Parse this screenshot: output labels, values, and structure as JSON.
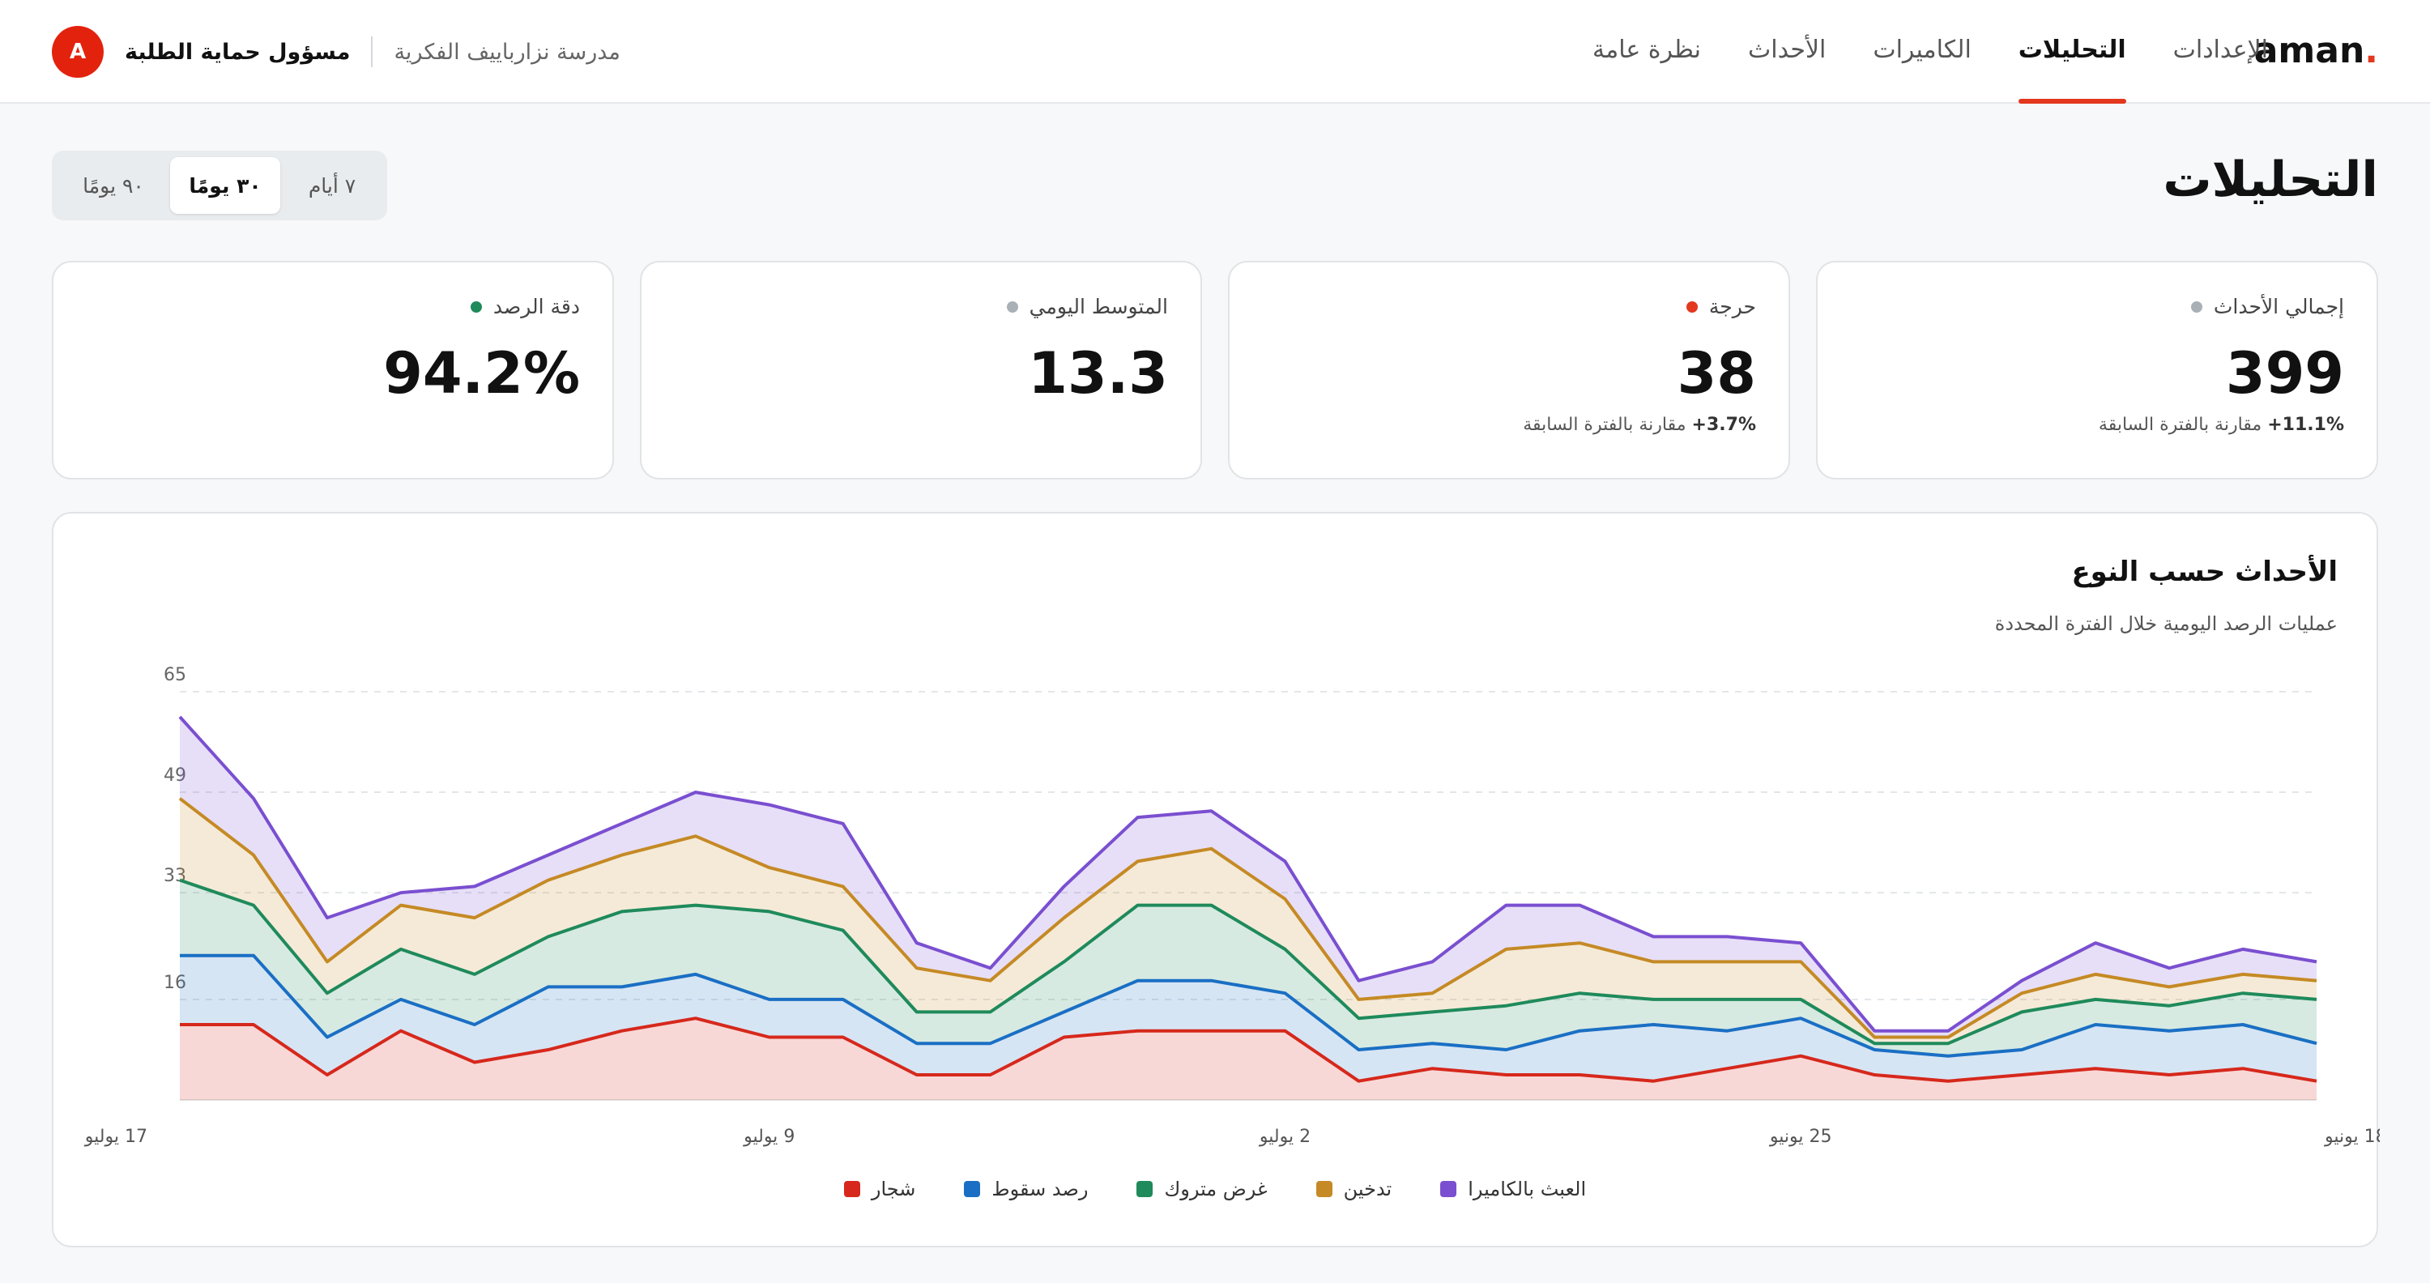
{
  "brand": {
    "logo_text": "aman",
    "logo_dot": "."
  },
  "nav": {
    "items": [
      {
        "label": "نظرة عامة",
        "active": false
      },
      {
        "label": "الأحداث",
        "active": false
      },
      {
        "label": "الكاميرات",
        "active": false
      },
      {
        "label": "التحليلات",
        "active": true
      },
      {
        "label": "الإعدادات",
        "active": false
      }
    ]
  },
  "user": {
    "avatar_initial": "A",
    "role": "مسؤول حماية الطلبة",
    "school": "مدرسة نزارباييف الفكرية"
  },
  "page": {
    "title": "التحليلات"
  },
  "range": {
    "options": [
      "٧ أيام",
      "٣٠ يومًا",
      "٩٠ يومًا"
    ],
    "selected": "٣٠ يومًا"
  },
  "kpis": [
    {
      "label": "إجمالي الأحداث",
      "value": "399",
      "delta": "+11.1%",
      "delta_text": "مقارنة بالفترة السابقة",
      "dot_color": "#a9b0b6"
    },
    {
      "label": "حرجة",
      "value": "38",
      "delta": "+3.7%",
      "delta_text": "مقارنة بالفترة السابقة",
      "dot_color": "#e3371e"
    },
    {
      "label": "المتوسط اليومي",
      "value": "13.3",
      "delta": "",
      "delta_text": "",
      "dot_color": "#a9b0b6"
    },
    {
      "label": "دقة الرصد",
      "value": "94.2%",
      "delta": "",
      "delta_text": "",
      "dot_color": "#1f8a5b"
    }
  ],
  "chart_card": {
    "title": "الأحداث حسب النوع",
    "subtitle": "عمليات الرصد اليومية خلال الفترة المحددة"
  },
  "chart_data": {
    "type": "area",
    "stacked": true,
    "x_direction": "rtl",
    "x_tick_labels": [
      "18 يونيو",
      "25 يونيو",
      "2 يوليو",
      "9 يوليو",
      "17 يوليو"
    ],
    "x_tick_index": [
      0,
      7,
      14,
      21,
      29
    ],
    "ylim": [
      0,
      65
    ],
    "y_ticks": [
      16,
      33,
      49,
      65
    ],
    "grid": true,
    "legend_position": "bottom",
    "series": [
      {
        "name": "شجار",
        "color": "#d6281c",
        "values": [
          3,
          5,
          4,
          5,
          4,
          3,
          4,
          7,
          5,
          3,
          4,
          4,
          5,
          3,
          11,
          11,
          11,
          10,
          4,
          4,
          10,
          10,
          13,
          11,
          8,
          6,
          11,
          4,
          12,
          12
        ]
      },
      {
        "name": "رصد سقوط",
        "color": "#1a6fc4",
        "values": [
          6,
          7,
          7,
          7,
          4,
          4,
          4,
          6,
          6,
          9,
          7,
          4,
          4,
          5,
          6,
          8,
          8,
          4,
          5,
          5,
          6,
          6,
          7,
          7,
          10,
          6,
          5,
          6,
          11,
          11
        ]
      },
      {
        "name": "غرض متروك",
        "color": "#1f8a5b",
        "values": [
          7,
          5,
          4,
          4,
          6,
          2,
          1,
          3,
          5,
          4,
          6,
          7,
          5,
          5,
          7,
          12,
          12,
          8,
          5,
          5,
          11,
          14,
          11,
          12,
          8,
          8,
          8,
          7,
          8,
          12
        ]
      },
      {
        "name": "تدخين",
        "color": "#c58a25",
        "values": [
          3,
          3,
          3,
          4,
          3,
          1,
          1,
          6,
          6,
          6,
          8,
          9,
          3,
          3,
          8,
          9,
          7,
          7,
          5,
          7,
          7,
          7,
          11,
          9,
          9,
          9,
          7,
          5,
          8,
          13
        ]
      },
      {
        "name": "العبث بالكاميرا",
        "color": "#7a4fd0",
        "values": [
          3,
          4,
          3,
          5,
          2,
          1,
          1,
          3,
          4,
          4,
          6,
          7,
          5,
          3,
          6,
          6,
          7,
          5,
          2,
          4,
          10,
          10,
          7,
          5,
          4,
          5,
          2,
          7,
          9,
          13
        ]
      }
    ]
  }
}
